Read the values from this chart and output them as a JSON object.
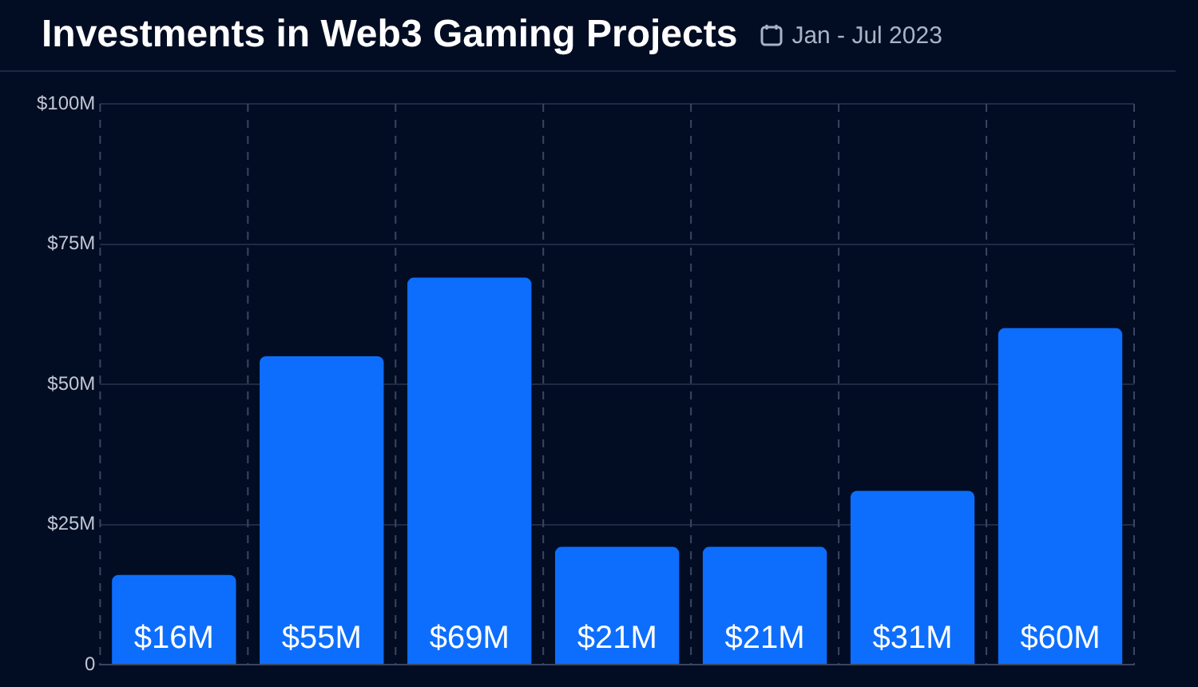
{
  "chart_data": {
    "type": "bar",
    "title": "Investments in Web3 Gaming Projects",
    "subtitle": "Jan - Jul 2023",
    "categories": [
      null,
      null,
      null,
      null,
      null,
      null,
      null
    ],
    "values": [
      16,
      55,
      69,
      21,
      21,
      31,
      60
    ],
    "value_labels": [
      "$16M",
      "$55M",
      "$69M",
      "$21M",
      "$21M",
      "$31M",
      "$60M"
    ],
    "color": "#0d6efd",
    "ylim": [
      0,
      100
    ],
    "yticks": [
      {
        "value": 0,
        "label": "0"
      },
      {
        "value": 25,
        "label": "$25M"
      },
      {
        "value": 50,
        "label": "$50M"
      },
      {
        "value": 75,
        "label": "$75M"
      },
      {
        "value": 100,
        "label": "$100M"
      }
    ],
    "grid": true
  }
}
